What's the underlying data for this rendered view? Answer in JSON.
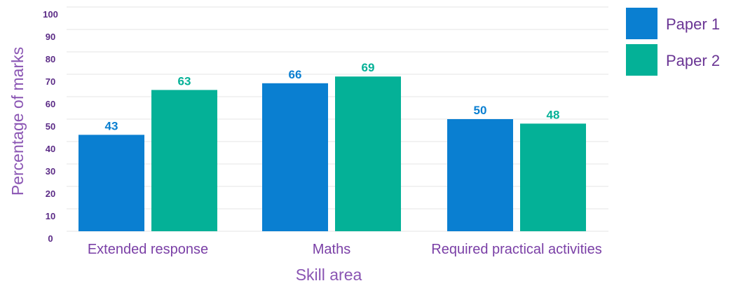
{
  "chart_data": {
    "type": "bar",
    "categories": [
      "Extended response",
      "Maths",
      "Required practical activities"
    ],
    "series": [
      {
        "name": "Paper 1",
        "values": [
          43,
          66,
          50
        ],
        "color": "#0a7fd1"
      },
      {
        "name": "Paper 2",
        "values": [
          63,
          69,
          48
        ],
        "color": "#04b197"
      }
    ],
    "title": "",
    "xlabel": "Skill area",
    "ylabel": "Percentage of marks",
    "ylim": [
      0,
      100
    ],
    "yticks": [
      0,
      10,
      20,
      30,
      40,
      50,
      60,
      70,
      80,
      90,
      100
    ],
    "grid": true,
    "legend_position": "top-right"
  }
}
